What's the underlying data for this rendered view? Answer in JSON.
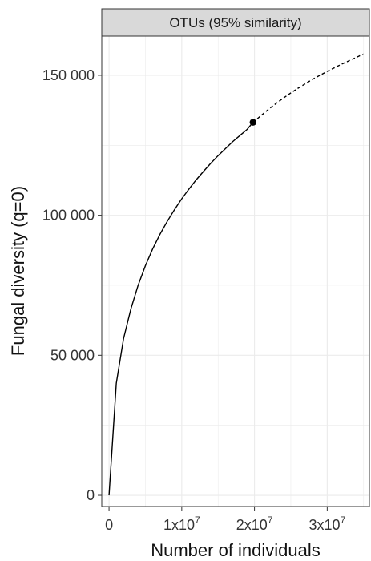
{
  "chart_data": {
    "type": "line",
    "facet_title": "OTUs (95% similarity)",
    "xlabel": "Number of individuals",
    "ylabel": "Fungal diversity (q=0)",
    "xlim": [
      -1000000,
      35800000
    ],
    "ylim": [
      -4000,
      164000
    ],
    "x_ticks": [
      {
        "value": 0,
        "label": "0",
        "exp": ""
      },
      {
        "value": 10000000,
        "label": "1x10",
        "exp": "7"
      },
      {
        "value": 20000000,
        "label": "2x10",
        "exp": "7"
      },
      {
        "value": 30000000,
        "label": "3x10",
        "exp": "7"
      }
    ],
    "y_ticks": [
      {
        "value": 0,
        "label": "0"
      },
      {
        "value": 50000,
        "label": "50 000"
      },
      {
        "value": 100000,
        "label": "100 000"
      },
      {
        "value": 150000,
        "label": "150 000"
      }
    ],
    "grid": true,
    "legend": "none",
    "series": [
      {
        "segment": "interpolated",
        "line_style": "solid",
        "x": [
          0,
          1000000,
          2000000,
          3000000,
          4000000,
          5000000,
          6000000,
          7000000,
          8000000,
          9000000,
          10000000,
          11000000,
          12000000,
          13000000,
          14000000,
          15000000,
          16000000,
          17000000,
          18000000,
          19000000,
          19800000
        ],
        "y": [
          0,
          40000,
          56000,
          66500,
          75000,
          82000,
          88000,
          93200,
          97800,
          102000,
          105900,
          109400,
          112700,
          115700,
          118600,
          121300,
          123800,
          126300,
          128500,
          130700,
          133200
        ]
      },
      {
        "segment": "extrapolated",
        "line_style": "dashed",
        "x": [
          19800000,
          21000000,
          22000000,
          23000000,
          24000000,
          25000000,
          26000000,
          27000000,
          28000000,
          29000000,
          30000000,
          31000000,
          32000000,
          33000000,
          34000000,
          35000000
        ],
        "y": [
          133200,
          135800,
          138000,
          140000,
          141900,
          143700,
          145400,
          147000,
          148600,
          150000,
          151400,
          152700,
          154000,
          155200,
          156400,
          157600
        ]
      }
    ],
    "observed_point": {
      "x": 19800000,
      "y": 133200
    }
  },
  "colors": {
    "line": "#000000",
    "grid": "#ebebeb",
    "panel_border": "#333333",
    "strip_fill": "#d9d9d9",
    "background": "#ffffff"
  }
}
